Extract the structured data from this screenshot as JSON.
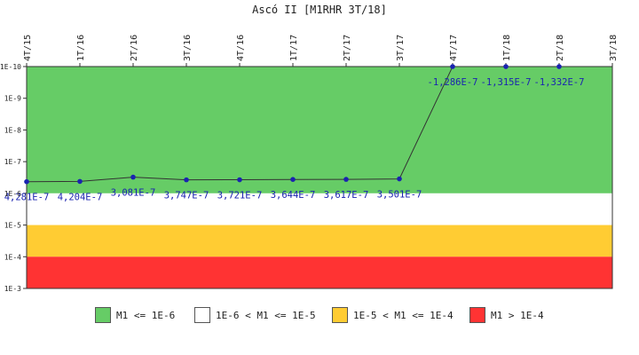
{
  "chart_data": {
    "type": "line",
    "title": "Ascó II [M1RHR 3T/18]",
    "y_scale": "log",
    "ylim": [
      0.001,
      1e-10
    ],
    "y_ticks": [
      "1E-10",
      "1E-9",
      "1E-8",
      "1E-7",
      "1E-6",
      "1E-5",
      "1E-4",
      "1E-3"
    ],
    "categories": [
      "4T/15",
      "1T/16",
      "2T/16",
      "3T/16",
      "4T/16",
      "1T/17",
      "2T/17",
      "3T/17",
      "4T/17",
      "1T/18",
      "2T/18",
      "3T/18"
    ],
    "series": [
      {
        "values": [
          4.281e-07,
          4.204e-07,
          3.081e-07,
          3.747e-07,
          3.721e-07,
          3.644e-07,
          3.617e-07,
          3.501e-07,
          -1.286e-07,
          -1.315e-07,
          -1.332e-07,
          null
        ],
        "labels": [
          "4,281E-7",
          "4,204E-7",
          "3,081E-7",
          "3,747E-7",
          "3,721E-7",
          "3,644E-7",
          "3,617E-7",
          "3,501E-7",
          "-1,286E-7",
          "-1,315E-7",
          "-1,332E-7",
          ""
        ]
      }
    ],
    "bands": [
      {
        "from": 1e-10,
        "to": 1e-06,
        "color": "#66cc66"
      },
      {
        "from": 1e-06,
        "to": 1e-05,
        "color": "#ffffff"
      },
      {
        "from": 1e-05,
        "to": 0.0001,
        "color": "#ffcc33"
      },
      {
        "from": 0.0001,
        "to": 0.001,
        "color": "#ff3333"
      }
    ],
    "legend": [
      {
        "label": "M1 <= 1E-6",
        "color": "#66cc66"
      },
      {
        "label": "1E-6 < M1 <= 1E-5",
        "color": "#ffffff"
      },
      {
        "label": "1E-5 < M1 <= 1E-4",
        "color": "#ffcc33"
      },
      {
        "label": "M1 > 1E-4",
        "color": "#ff3333"
      }
    ],
    "legend_position": "bottom",
    "line_color": "#333333",
    "marker_color": "#1a23b0"
  }
}
